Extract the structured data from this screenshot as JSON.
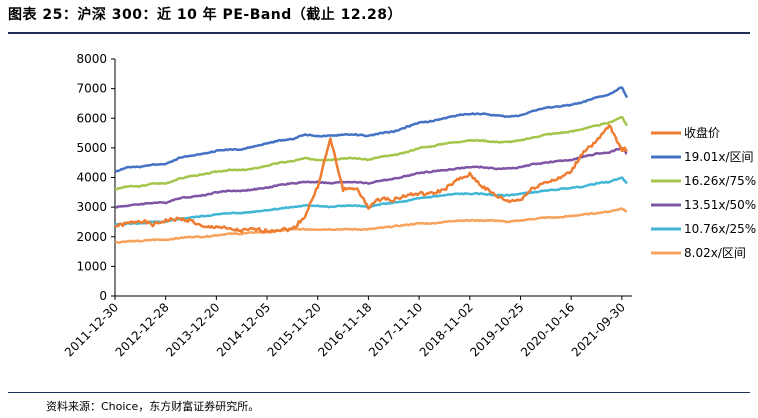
{
  "figure": {
    "title": "图表 25：沪深 300：近 10 年 PE-Band（截止 12.28）",
    "source": "资料来源：Choice，东方财富证券研究所。"
  },
  "chart_data": {
    "type": "line",
    "title": "",
    "xlabel": "",
    "ylabel": "",
    "ylim": [
      0,
      8000
    ],
    "yticks": [
      0,
      1000,
      2000,
      3000,
      4000,
      5000,
      6000,
      7000,
      8000
    ],
    "xtick_labels": [
      "2011-12-30",
      "2012-12-28",
      "2013-12-20",
      "2014-12-05",
      "2015-11-20",
      "2016-11-18",
      "2017-11-10",
      "2018-11-02",
      "2019-10-25",
      "2020-10-16",
      "2021-09-30"
    ],
    "x_range": [
      0,
      10.2
    ],
    "x": [
      0,
      0.25,
      0.5,
      0.75,
      1,
      1.25,
      1.5,
      1.75,
      2,
      2.25,
      2.5,
      2.75,
      3,
      3.25,
      3.5,
      3.75,
      4,
      4.25,
      4.5,
      4.75,
      5,
      5.25,
      5.5,
      5.75,
      6,
      6.25,
      6.5,
      6.75,
      7,
      7.25,
      7.5,
      7.75,
      8,
      8.25,
      8.5,
      8.75,
      9,
      9.25,
      9.5,
      9.75,
      10,
      10.1
    ],
    "series": [
      {
        "name": "收盘价",
        "color": "#ee7d31",
        "width": 2.5,
        "values": [
          2350,
          2450,
          2550,
          2400,
          2550,
          2600,
          2550,
          2300,
          2350,
          2250,
          2200,
          2250,
          2200,
          2250,
          2250,
          2700,
          3700,
          5300,
          3600,
          3650,
          3000,
          3300,
          3250,
          3400,
          3450,
          3450,
          3600,
          3900,
          4100,
          3700,
          3400,
          3200,
          3250,
          3650,
          3850,
          3950,
          4200,
          4900,
          5200,
          5750,
          4950,
          4950
        ]
      },
      {
        "name": "19.01x/区间",
        "color": "#4472c4",
        "width": 2.5,
        "values": [
          4200,
          4350,
          4350,
          4450,
          4450,
          4650,
          4750,
          4800,
          4900,
          4950,
          4950,
          5050,
          5150,
          5250,
          5300,
          5450,
          5400,
          5400,
          5450,
          5450,
          5400,
          5500,
          5550,
          5700,
          5850,
          5900,
          6000,
          6100,
          6150,
          6150,
          6100,
          6050,
          6100,
          6250,
          6350,
          6400,
          6450,
          6550,
          6700,
          6800,
          7050,
          6700
        ]
      },
      {
        "name": "16.26x/75%",
        "color": "#a5c64b",
        "width": 2.5,
        "values": [
          3600,
          3700,
          3700,
          3800,
          3800,
          3950,
          4050,
          4100,
          4200,
          4250,
          4250,
          4300,
          4400,
          4500,
          4550,
          4650,
          4600,
          4600,
          4650,
          4650,
          4600,
          4700,
          4750,
          4850,
          5000,
          5050,
          5150,
          5200,
          5250,
          5250,
          5200,
          5200,
          5250,
          5350,
          5450,
          5500,
          5550,
          5650,
          5750,
          5850,
          6050,
          5750
        ]
      },
      {
        "name": "13.51x/50%",
        "color": "#7f55a6",
        "width": 2.5,
        "values": [
          3000,
          3050,
          3100,
          3150,
          3150,
          3300,
          3350,
          3400,
          3500,
          3550,
          3550,
          3600,
          3650,
          3750,
          3800,
          3850,
          3850,
          3800,
          3850,
          3850,
          3800,
          3900,
          3950,
          4050,
          4150,
          4200,
          4250,
          4300,
          4350,
          4350,
          4300,
          4300,
          4350,
          4450,
          4500,
          4550,
          4600,
          4700,
          4800,
          4850,
          5000,
          4800
        ]
      },
      {
        "name": "10.76x/25%",
        "color": "#41b6d6",
        "width": 2.5,
        "values": [
          2400,
          2450,
          2450,
          2500,
          2500,
          2600,
          2650,
          2700,
          2750,
          2800,
          2800,
          2850,
          2900,
          2950,
          3000,
          3050,
          3050,
          3000,
          3050,
          3050,
          3000,
          3100,
          3150,
          3200,
          3300,
          3350,
          3400,
          3450,
          3450,
          3450,
          3400,
          3400,
          3450,
          3500,
          3550,
          3600,
          3650,
          3700,
          3800,
          3850,
          4000,
          3800
        ]
      },
      {
        "name": "8.02x/区间",
        "color": "#f7a35c",
        "width": 2.5,
        "values": [
          1800,
          1850,
          1850,
          1900,
          1900,
          1950,
          2000,
          2000,
          2050,
          2100,
          2100,
          2150,
          2150,
          2200,
          2250,
          2250,
          2250,
          2250,
          2250,
          2250,
          2250,
          2300,
          2350,
          2400,
          2450,
          2450,
          2500,
          2550,
          2550,
          2550,
          2550,
          2500,
          2550,
          2600,
          2650,
          2650,
          2700,
          2750,
          2800,
          2850,
          2950,
          2850
        ]
      }
    ],
    "legend_position": "right",
    "grid": false
  }
}
